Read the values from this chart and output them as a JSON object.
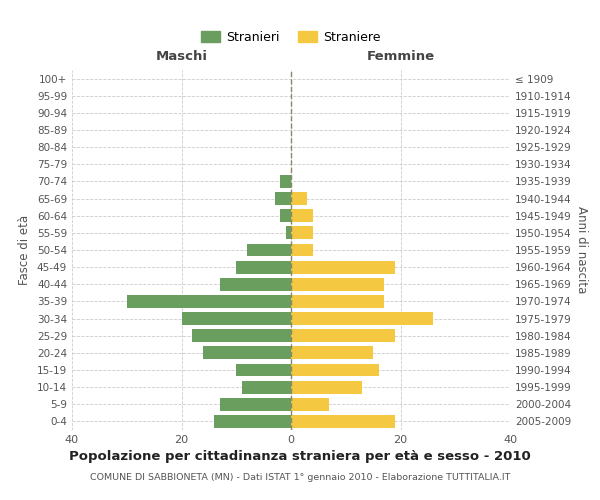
{
  "age_groups": [
    "100+",
    "95-99",
    "90-94",
    "85-89",
    "80-84",
    "75-79",
    "70-74",
    "65-69",
    "60-64",
    "55-59",
    "50-54",
    "45-49",
    "40-44",
    "35-39",
    "30-34",
    "25-29",
    "20-24",
    "15-19",
    "10-14",
    "5-9",
    "0-4"
  ],
  "birth_years": [
    "≤ 1909",
    "1910-1914",
    "1915-1919",
    "1920-1924",
    "1925-1929",
    "1930-1934",
    "1935-1939",
    "1940-1944",
    "1945-1949",
    "1950-1954",
    "1955-1959",
    "1960-1964",
    "1965-1969",
    "1970-1974",
    "1975-1979",
    "1980-1984",
    "1985-1989",
    "1990-1994",
    "1995-1999",
    "2000-2004",
    "2005-2009"
  ],
  "maschi": [
    0,
    0,
    0,
    0,
    0,
    0,
    2,
    3,
    2,
    1,
    8,
    10,
    13,
    30,
    20,
    18,
    16,
    10,
    9,
    13,
    14
  ],
  "femmine": [
    0,
    0,
    0,
    0,
    0,
    0,
    0,
    3,
    4,
    4,
    4,
    19,
    17,
    17,
    26,
    19,
    15,
    16,
    13,
    7,
    19
  ],
  "male_color": "#6a9e5e",
  "female_color": "#f5c842",
  "background_color": "#ffffff",
  "grid_color": "#cccccc",
  "title": "Popolazione per cittadinanza straniera per età e sesso - 2010",
  "subtitle": "COMUNE DI SABBIONETA (MN) - Dati ISTAT 1° gennaio 2010 - Elaborazione TUTTITALIA.IT",
  "xlabel_left": "Maschi",
  "xlabel_right": "Femmine",
  "ylabel_left": "Fasce di età",
  "ylabel_right": "Anni di nascita",
  "legend_male": "Stranieri",
  "legend_female": "Straniere",
  "xlim": 40
}
